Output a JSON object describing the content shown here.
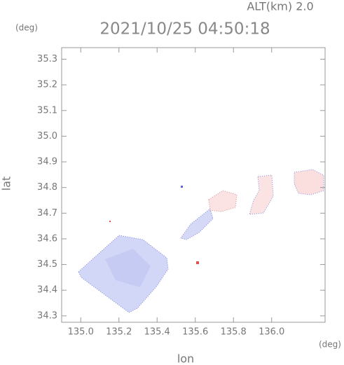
{
  "chart_data": {
    "type": "map",
    "title": "2021/10/25 04:50:18",
    "annotation": "ALT(km) 2.0",
    "xlabel": "lon",
    "ylabel": "lat",
    "xunit": "(deg)",
    "yunit": "(deg)",
    "xlim": [
      134.9,
      136.28
    ],
    "ylim": [
      34.275,
      35.345
    ],
    "xticks": [
      {
        "value": 135.0,
        "label": "135.0"
      },
      135.2,
      135.4,
      135.6,
      135.8,
      {
        "value": 136.0,
        "label": "136.0"
      }
    ],
    "yticks": [
      34.3,
      34.4,
      34.5,
      34.6,
      34.7,
      34.8,
      34.9,
      {
        "value": 35.0,
        "label": "35.0"
      },
      35.1,
      35.2,
      35.3
    ]
  }
}
